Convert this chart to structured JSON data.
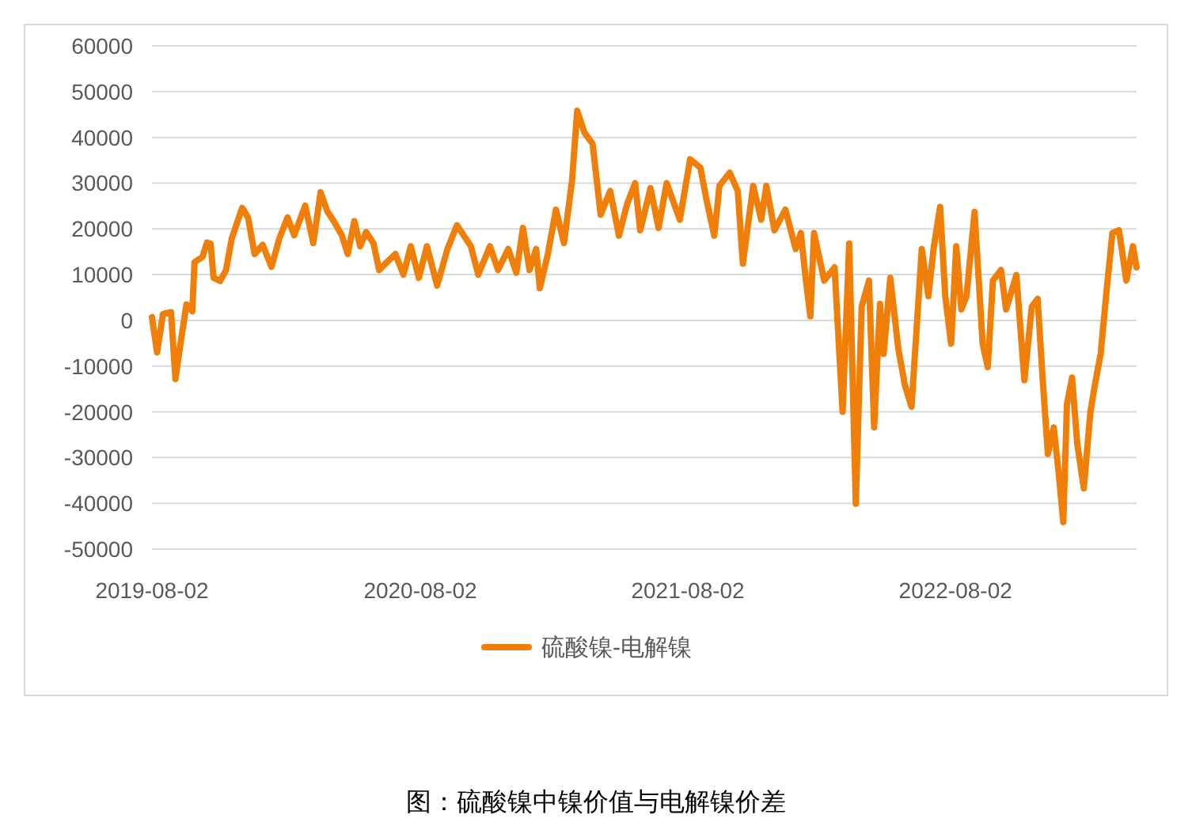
{
  "chart_data": {
    "type": "line",
    "x": [
      "2019-08-02",
      "2019-08-09",
      "2019-08-17",
      "2019-08-28",
      "2019-09-03",
      "2019-09-10",
      "2019-09-18",
      "2019-09-26",
      "2019-09-29",
      "2019-10-10",
      "2019-10-16",
      "2019-10-21",
      "2019-10-25",
      "2019-11-03",
      "2019-11-11",
      "2019-11-19",
      "2019-12-03",
      "2019-12-11",
      "2019-12-20",
      "2019-12-31",
      "2020-01-12",
      "2020-01-23",
      "2020-02-03",
      "2020-02-12",
      "2020-02-27",
      "2020-03-09",
      "2020-03-19",
      "2020-03-28",
      "2020-04-07",
      "2020-04-17",
      "2020-04-25",
      "2020-05-04",
      "2020-05-12",
      "2020-05-20",
      "2020-05-30",
      "2020-06-07",
      "2020-06-18",
      "2020-06-29",
      "2020-07-10",
      "2020-07-20",
      "2020-07-31",
      "2020-08-11",
      "2020-08-25",
      "2020-09-08",
      "2020-09-21",
      "2020-10-10",
      "2020-10-20",
      "2020-11-05",
      "2020-11-16",
      "2020-11-30",
      "2020-12-11",
      "2020-12-20",
      "2020-12-29",
      "2021-01-07",
      "2021-01-12",
      "2021-01-23",
      "2021-02-03",
      "2021-02-14",
      "2021-02-25",
      "2021-03-04",
      "2021-03-14",
      "2021-03-25",
      "2021-04-05",
      "2021-04-18",
      "2021-04-30",
      "2021-05-11",
      "2021-05-22",
      "2021-05-29",
      "2021-06-12",
      "2021-06-23",
      "2021-07-04",
      "2021-07-22",
      "2021-08-05",
      "2021-08-19",
      "2021-08-27",
      "2021-09-07",
      "2021-09-14",
      "2021-09-28",
      "2021-10-09",
      "2021-10-16",
      "2021-10-30",
      "2021-11-10",
      "2021-11-17",
      "2021-11-28",
      "2021-12-13",
      "2021-12-27",
      "2022-01-03",
      "2022-01-10",
      "2022-01-16",
      "2022-01-21",
      "2022-02-04",
      "2022-02-18",
      "2022-03-01",
      "2022-03-10",
      "2022-03-19",
      "2022-03-27",
      "2022-04-06",
      "2022-04-13",
      "2022-04-21",
      "2022-04-26",
      "2022-05-05",
      "2022-05-16",
      "2022-05-25",
      "2022-06-03",
      "2022-06-17",
      "2022-06-26",
      "2022-07-03",
      "2022-07-12",
      "2022-07-19",
      "2022-07-27",
      "2022-08-03",
      "2022-08-10",
      "2022-08-17",
      "2022-08-28",
      "2022-09-08",
      "2022-09-15",
      "2022-09-22",
      "2022-10-03",
      "2022-10-10",
      "2022-10-24",
      "2022-11-04",
      "2022-11-14",
      "2022-11-22",
      "2022-11-29",
      "2022-12-06",
      "2022-12-14",
      "2022-12-21",
      "2022-12-27",
      "2023-01-01",
      "2023-01-08",
      "2023-01-15",
      "2023-01-24",
      "2023-02-02",
      "2023-02-08",
      "2023-02-16",
      "2023-02-24",
      "2023-03-04",
      "2023-03-13",
      "2023-03-23",
      "2023-04-01",
      "2023-04-06"
    ],
    "series": [
      {
        "name": "硫酸镍-电解镍",
        "color": "#f07f09",
        "values": [
          700,
          -7000,
          1400,
          1800,
          -12800,
          -5000,
          3500,
          2000,
          12700,
          13900,
          17000,
          16800,
          9300,
          8600,
          11000,
          18000,
          24600,
          22500,
          14500,
          16500,
          11700,
          18000,
          22500,
          18600,
          25100,
          16900,
          28000,
          23900,
          21400,
          18600,
          14500,
          21700,
          16200,
          19300,
          16900,
          11000,
          12800,
          14500,
          10000,
          16200,
          9300,
          16200,
          7600,
          15600,
          20800,
          16200,
          10000,
          16200,
          11000,
          15600,
          10400,
          20200,
          11000,
          15600,
          7000,
          14500,
          24200,
          16900,
          30600,
          45800,
          41000,
          38600,
          23100,
          28300,
          18500,
          25400,
          30000,
          19700,
          28900,
          20200,
          30000,
          22000,
          35200,
          33400,
          26600,
          18500,
          29400,
          32300,
          28300,
          12400,
          29400,
          22000,
          29400,
          19700,
          24200,
          15600,
          19100,
          8700,
          900,
          19100,
          8700,
          11600,
          -20000,
          16800,
          -40100,
          3000,
          8700,
          -23400,
          3600,
          -7300,
          9300,
          -6200,
          -14200,
          -18900,
          15600,
          5300,
          15600,
          24800,
          5300,
          -5100,
          16200,
          2400,
          5300,
          23700,
          -5100,
          -10200,
          8700,
          11000,
          2400,
          9900,
          -13100,
          3000,
          4700,
          -13100,
          -29200,
          -23400,
          -33800,
          -44100,
          -18300,
          -12500,
          -26900,
          -36700,
          -20000,
          -14200,
          -7300,
          6400,
          19100,
          19700,
          8700,
          16200,
          11600
        ]
      }
    ],
    "xlim": [
      "2019-08-02",
      "2023-04-06"
    ],
    "xticks": [
      "2019-08-02",
      "2020-08-02",
      "2021-08-02",
      "2022-08-02"
    ],
    "ylim": [
      -50000,
      60000
    ],
    "yticks": [
      -50000,
      -40000,
      -30000,
      -20000,
      -10000,
      0,
      10000,
      20000,
      30000,
      40000,
      50000,
      60000
    ],
    "grid": "y",
    "legend": "bottom",
    "annotations": [
      "图：硫酸镍中镍价值与电解镍价差"
    ]
  }
}
